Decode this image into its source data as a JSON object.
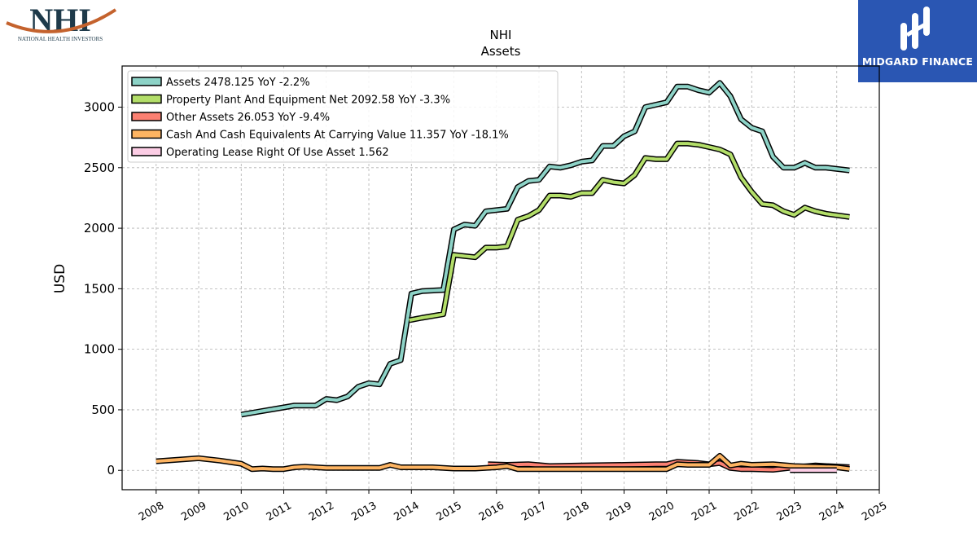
{
  "logos": {
    "left_big": "NHI",
    "left_small": "NATIONAL HEALTH INVESTORS",
    "right_brand": "MIDGARD FINANCE"
  },
  "chart_data": {
    "type": "line",
    "title": "NHI",
    "subtitle": "Assets",
    "xlabel": "",
    "ylabel": "USD",
    "xlim": [
      2007.2,
      2025.0
    ],
    "ylim": [
      -160,
      3340
    ],
    "x_ticks": [
      2008,
      2009,
      2010,
      2011,
      2012,
      2013,
      2014,
      2015,
      2016,
      2017,
      2018,
      2019,
      2020,
      2021,
      2022,
      2023,
      2024,
      2025
    ],
    "y_ticks": [
      0,
      500,
      1000,
      1500,
      2000,
      2500,
      3000
    ],
    "grid": true,
    "legend_position": "top-left",
    "series": [
      {
        "name": "Assets  2478.125 YoY -2.2%",
        "color": "#8dd3c7",
        "points": [
          [
            2010.0,
            460
          ],
          [
            2010.5,
            490
          ],
          [
            2011.0,
            520
          ],
          [
            2011.25,
            535
          ],
          [
            2011.75,
            535
          ],
          [
            2012.0,
            590
          ],
          [
            2012.25,
            580
          ],
          [
            2012.5,
            610
          ],
          [
            2012.75,
            690
          ],
          [
            2013.0,
            720
          ],
          [
            2013.25,
            710
          ],
          [
            2013.5,
            880
          ],
          [
            2013.75,
            910
          ],
          [
            2014.0,
            1460
          ],
          [
            2014.25,
            1480
          ],
          [
            2014.75,
            1490
          ],
          [
            2015.0,
            1990
          ],
          [
            2015.25,
            2030
          ],
          [
            2015.5,
            2020
          ],
          [
            2015.75,
            2140
          ],
          [
            2016.0,
            2150
          ],
          [
            2016.25,
            2160
          ],
          [
            2016.5,
            2340
          ],
          [
            2016.75,
            2390
          ],
          [
            2017.0,
            2400
          ],
          [
            2017.25,
            2510
          ],
          [
            2017.5,
            2500
          ],
          [
            2017.75,
            2520
          ],
          [
            2018.0,
            2550
          ],
          [
            2018.25,
            2560
          ],
          [
            2018.5,
            2680
          ],
          [
            2018.75,
            2680
          ],
          [
            2019.0,
            2760
          ],
          [
            2019.25,
            2800
          ],
          [
            2019.5,
            3000
          ],
          [
            2019.75,
            3020
          ],
          [
            2020.0,
            3040
          ],
          [
            2020.25,
            3170
          ],
          [
            2020.5,
            3170
          ],
          [
            2020.75,
            3140
          ],
          [
            2021.0,
            3120
          ],
          [
            2021.25,
            3200
          ],
          [
            2021.5,
            3090
          ],
          [
            2021.75,
            2900
          ],
          [
            2022.0,
            2830
          ],
          [
            2022.25,
            2800
          ],
          [
            2022.5,
            2590
          ],
          [
            2022.75,
            2500
          ],
          [
            2023.0,
            2500
          ],
          [
            2023.25,
            2540
          ],
          [
            2023.5,
            2500
          ],
          [
            2023.75,
            2500
          ],
          [
            2024.3,
            2478.125
          ]
        ]
      },
      {
        "name": "Property Plant And Equipment Net  2092.58 YoY -3.3%",
        "color": "#b3de69",
        "points": [
          [
            2013.95,
            1240
          ],
          [
            2014.25,
            1260
          ],
          [
            2014.75,
            1290
          ],
          [
            2015.0,
            1780
          ],
          [
            2015.25,
            1770
          ],
          [
            2015.5,
            1760
          ],
          [
            2015.75,
            1840
          ],
          [
            2016.0,
            1840
          ],
          [
            2016.25,
            1850
          ],
          [
            2016.5,
            2070
          ],
          [
            2016.75,
            2100
          ],
          [
            2017.0,
            2150
          ],
          [
            2017.25,
            2270
          ],
          [
            2017.5,
            2270
          ],
          [
            2017.75,
            2260
          ],
          [
            2018.0,
            2290
          ],
          [
            2018.25,
            2290
          ],
          [
            2018.5,
            2400
          ],
          [
            2018.75,
            2380
          ],
          [
            2019.0,
            2370
          ],
          [
            2019.25,
            2440
          ],
          [
            2019.5,
            2580
          ],
          [
            2019.75,
            2570
          ],
          [
            2020.0,
            2570
          ],
          [
            2020.25,
            2700
          ],
          [
            2020.5,
            2700
          ],
          [
            2020.75,
            2690
          ],
          [
            2021.0,
            2670
          ],
          [
            2021.25,
            2650
          ],
          [
            2021.5,
            2610
          ],
          [
            2021.75,
            2420
          ],
          [
            2022.0,
            2300
          ],
          [
            2022.25,
            2200
          ],
          [
            2022.5,
            2190
          ],
          [
            2022.75,
            2140
          ],
          [
            2023.0,
            2110
          ],
          [
            2023.25,
            2170
          ],
          [
            2023.5,
            2140
          ],
          [
            2023.75,
            2120
          ],
          [
            2024.3,
            2092.58
          ]
        ]
      },
      {
        "name": "Other Assets  26.053 YoY -9.4%",
        "color": "#fb8072",
        "points": [
          [
            2015.8,
            50
          ],
          [
            2016.25,
            45
          ],
          [
            2016.75,
            50
          ],
          [
            2017.25,
            35
          ],
          [
            2018.0,
            40
          ],
          [
            2019.0,
            45
          ],
          [
            2019.75,
            50
          ],
          [
            2020.0,
            50
          ],
          [
            2020.25,
            70
          ],
          [
            2020.75,
            60
          ],
          [
            2021.0,
            50
          ],
          [
            2021.25,
            60
          ],
          [
            2021.5,
            20
          ],
          [
            2021.75,
            10
          ],
          [
            2022.0,
            10
          ],
          [
            2022.5,
            5
          ],
          [
            2023.0,
            25
          ],
          [
            2023.5,
            40
          ],
          [
            2024.3,
            26.053
          ]
        ]
      },
      {
        "name": "Cash And Cash Equivalents At Carrying Value  11.357 YoY -18.1%",
        "color": "#fdb462",
        "points": [
          [
            2008.0,
            75
          ],
          [
            2009.0,
            100
          ],
          [
            2009.5,
            80
          ],
          [
            2010.0,
            55
          ],
          [
            2010.25,
            10
          ],
          [
            2010.5,
            15
          ],
          [
            2010.75,
            10
          ],
          [
            2011.0,
            10
          ],
          [
            2011.25,
            25
          ],
          [
            2011.5,
            30
          ],
          [
            2012.0,
            20
          ],
          [
            2012.5,
            20
          ],
          [
            2013.0,
            20
          ],
          [
            2013.25,
            20
          ],
          [
            2013.5,
            45
          ],
          [
            2013.75,
            25
          ],
          [
            2014.0,
            25
          ],
          [
            2014.5,
            25
          ],
          [
            2015.0,
            15
          ],
          [
            2015.5,
            15
          ],
          [
            2015.75,
            20
          ],
          [
            2016.0,
            25
          ],
          [
            2016.25,
            35
          ],
          [
            2016.5,
            10
          ],
          [
            2017.0,
            10
          ],
          [
            2018.0,
            10
          ],
          [
            2019.0,
            10
          ],
          [
            2020.0,
            10
          ],
          [
            2020.25,
            50
          ],
          [
            2020.5,
            45
          ],
          [
            2021.0,
            45
          ],
          [
            2021.25,
            120
          ],
          [
            2021.5,
            40
          ],
          [
            2021.75,
            55
          ],
          [
            2022.0,
            45
          ],
          [
            2022.5,
            50
          ],
          [
            2023.0,
            35
          ],
          [
            2023.5,
            30
          ],
          [
            2024.0,
            25
          ],
          [
            2024.3,
            11.357
          ]
        ]
      },
      {
        "name": "Operating Lease Right Of Use Asset  1.562",
        "color": "#fccde5",
        "points": [
          [
            2022.9,
            1.6
          ],
          [
            2024.0,
            1.562
          ]
        ]
      }
    ]
  }
}
